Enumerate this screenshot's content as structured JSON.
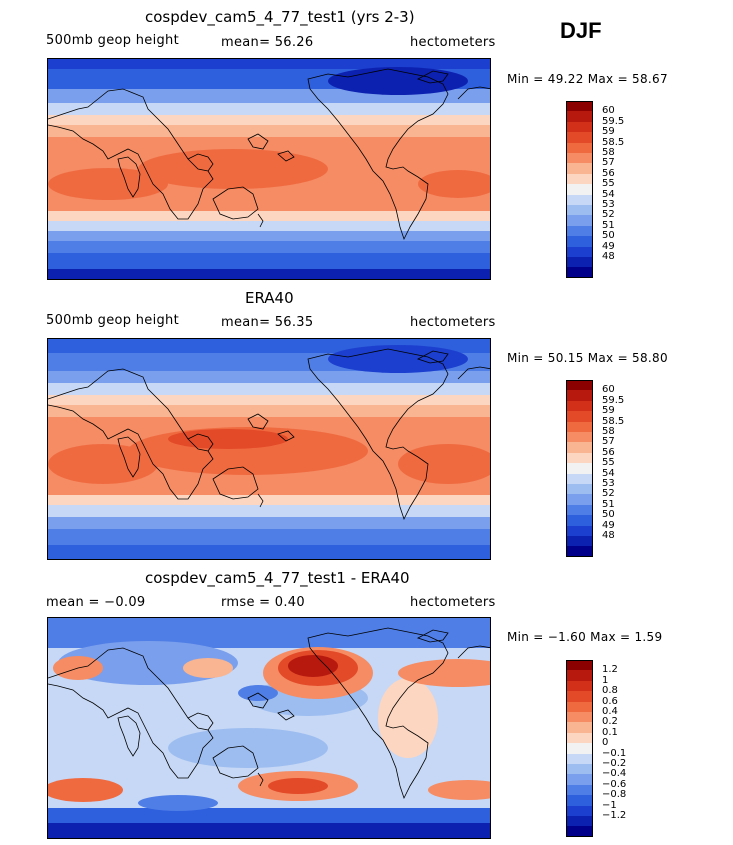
{
  "season": "DJF",
  "panels": [
    {
      "id": "model",
      "title": "cospdev_cam5_4_77_test1 (yrs 2-3)",
      "left_text": "500mb geop height",
      "center_text": "mean=  56.26",
      "units": "hectometers",
      "minmax": "Min =  49.22 Max =  58.67",
      "colorbar": {
        "labels": [
          "60",
          "59.5",
          "59",
          "58.5",
          "58",
          "57",
          "56",
          "55",
          "54",
          "53",
          "52",
          "51",
          "50",
          "49",
          "48"
        ],
        "colors": [
          "#8b0000",
          "#b8190f",
          "#d3301a",
          "#e34a28",
          "#f06a40",
          "#f58c64",
          "#f9b491",
          "#fcd6c1",
          "#f2f2f2",
          "#c6d8f5",
          "#9dbdf0",
          "#7a9fec",
          "#4f7ee6",
          "#2e5fdc",
          "#1c3fcf",
          "#0d21b0",
          "#00008b"
        ]
      }
    },
    {
      "id": "obs",
      "title": "ERA40",
      "left_text": "500mb geop height",
      "center_text": "mean=  56.35",
      "units": "hectometers",
      "minmax": "Min =  50.15 Max =  58.80",
      "colorbar": {
        "labels": [
          "60",
          "59.5",
          "59",
          "58.5",
          "58",
          "57",
          "56",
          "55",
          "54",
          "53",
          "52",
          "51",
          "50",
          "49",
          "48"
        ],
        "colors": [
          "#8b0000",
          "#b8190f",
          "#d3301a",
          "#e34a28",
          "#f06a40",
          "#f58c64",
          "#f9b491",
          "#fcd6c1",
          "#f2f2f2",
          "#c6d8f5",
          "#9dbdf0",
          "#7a9fec",
          "#4f7ee6",
          "#2e5fdc",
          "#1c3fcf",
          "#0d21b0",
          "#00008b"
        ]
      }
    },
    {
      "id": "diff",
      "title": "cospdev_cam5_4_77_test1 - ERA40",
      "left_text": "mean =  −0.09",
      "center_text": "rmse =   0.40",
      "units": "hectometers",
      "minmax": "Min =  −1.60 Max =   1.59",
      "colorbar": {
        "labels": [
          "1.2",
          "1",
          "0.8",
          "0.6",
          "0.4",
          "0.2",
          "0.1",
          "0",
          "−0.1",
          "−0.2",
          "−0.4",
          "−0.6",
          "−0.8",
          "−1",
          "−1.2"
        ],
        "colors": [
          "#8b0000",
          "#b8190f",
          "#d3301a",
          "#e34a28",
          "#f06a40",
          "#f58c64",
          "#f9b491",
          "#fcd6c1",
          "#f2f2f2",
          "#c6d8f5",
          "#9dbdf0",
          "#7a9fec",
          "#4f7ee6",
          "#2e5fdc",
          "#1c3fcf",
          "#0d21b0",
          "#00008b"
        ]
      }
    }
  ]
}
